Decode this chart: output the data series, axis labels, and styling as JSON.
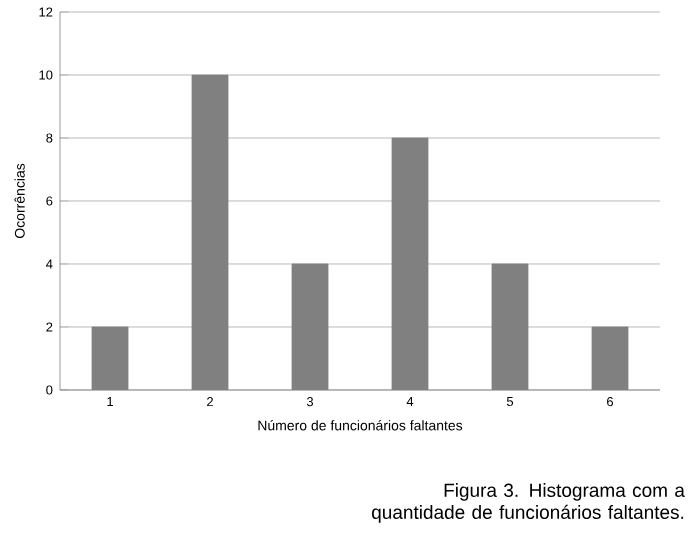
{
  "chart_data": {
    "type": "bar",
    "categories": [
      "1",
      "2",
      "3",
      "4",
      "5",
      "6"
    ],
    "values": [
      2,
      10,
      4,
      8,
      4,
      2
    ],
    "color": "#808080",
    "ylim": [
      0,
      12
    ],
    "yticks": [
      0,
      2,
      4,
      6,
      8,
      10,
      12
    ],
    "grid": "y",
    "xlabel": "Número de funcionários faltantes",
    "ylabel": "Ocorrências",
    "annotations": [
      "Figura 3. Histograma com a quantidade de funcionários faltantes."
    ]
  }
}
